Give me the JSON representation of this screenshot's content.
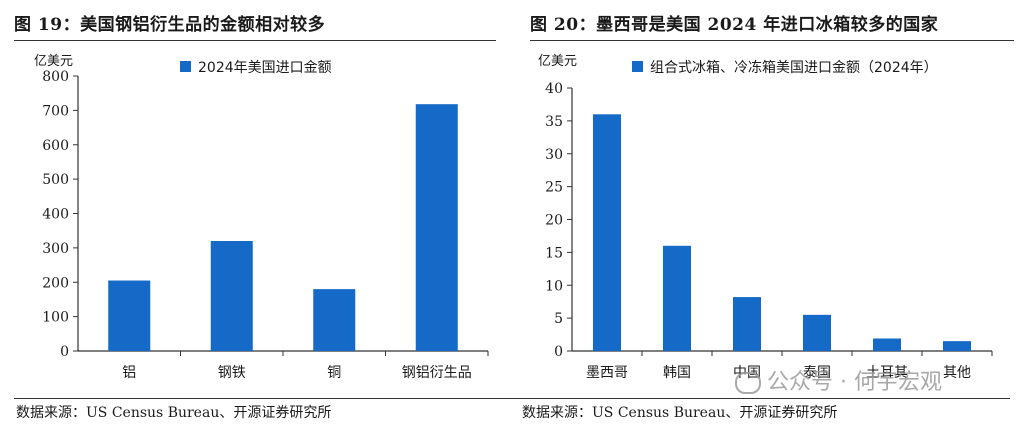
{
  "left": {
    "title": "图 19：美国钢铝衍生品的金额相对较多",
    "unit": "亿美元",
    "source": "数据来源：US Census Bureau、开源证券研究所"
  },
  "right": {
    "title": "图 20：墨西哥是美国 2024 年进口冰箱较多的国家",
    "unit": "亿美元",
    "source": "数据来源：US Census Bureau、开源证券研究所"
  },
  "watermark": "公众号 · 何宇宏观",
  "colors": {
    "bar": "#1569C7"
  },
  "chart_data": [
    {
      "type": "bar",
      "title": "美国钢铝衍生品的金额相对较多",
      "ylabel": "亿美元",
      "categories": [
        "铝",
        "钢铁",
        "铜",
        "钢铝衍生品"
      ],
      "series": [
        {
          "name": "2024年美国进口金额",
          "values": [
            205,
            320,
            180,
            718
          ]
        }
      ],
      "ylim": [
        0,
        800
      ],
      "yticks": [
        0,
        100,
        200,
        300,
        400,
        500,
        600,
        700,
        800
      ],
      "legend": "top"
    },
    {
      "type": "bar",
      "title": "墨西哥是美国 2024 年进口冰箱较多的国家",
      "ylabel": "亿美元",
      "categories": [
        "墨西哥",
        "韩国",
        "中国",
        "泰国",
        "土耳其",
        "其他"
      ],
      "series": [
        {
          "name": "组合式冰箱、冷冻箱美国进口金额（2024年）",
          "values": [
            36,
            16,
            8.2,
            5.5,
            1.9,
            1.5
          ]
        }
      ],
      "ylim": [
        0,
        40
      ],
      "yticks": [
        0,
        5,
        10,
        15,
        20,
        25,
        30,
        35,
        40
      ],
      "legend": "top"
    }
  ]
}
